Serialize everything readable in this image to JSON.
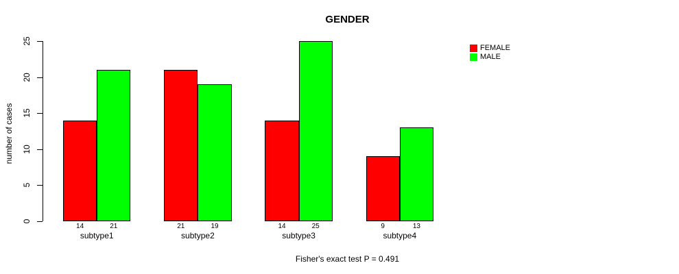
{
  "chart_data": {
    "type": "bar",
    "title": "GENDER",
    "xlabel": "",
    "ylabel": "number of cases",
    "categories": [
      "subtype1",
      "subtype2",
      "subtype3",
      "subtype4"
    ],
    "series": [
      {
        "name": "FEMALE",
        "color": "#FF0000",
        "values": [
          14,
          21,
          14,
          9
        ]
      },
      {
        "name": "MALE",
        "color": "#00FF00",
        "values": [
          21,
          19,
          25,
          13
        ]
      }
    ],
    "ylim": [
      0,
      25
    ],
    "yticks": [
      0,
      5,
      10,
      15,
      20,
      25
    ],
    "grid": false,
    "legend_position": "right",
    "bar_value_labels": true,
    "annotation": "Fisher's exact test P = 0.491",
    "axis_color": "#000000",
    "background_color": "#FFFFFF"
  }
}
